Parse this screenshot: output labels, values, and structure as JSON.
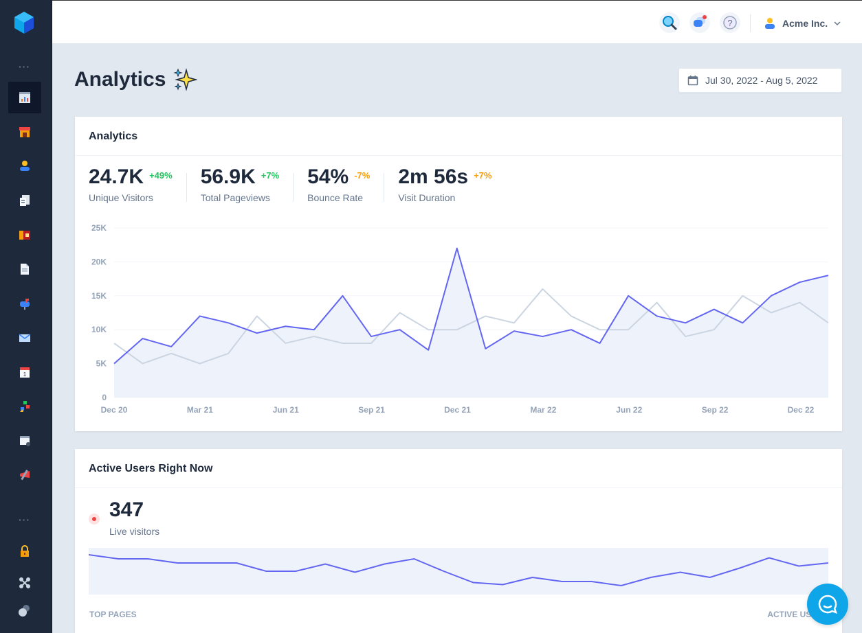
{
  "header": {
    "user_name": "Acme Inc."
  },
  "page": {
    "title": "Analytics",
    "date_range": "Jul 30, 2022 - Aug 5, 2022"
  },
  "analytics_card": {
    "title": "Analytics",
    "stats": [
      {
        "value": "24.7K",
        "delta": "+49%",
        "label": "Unique Visitors",
        "trend": "up"
      },
      {
        "value": "56.9K",
        "delta": "+7%",
        "label": "Total Pageviews",
        "trend": "up"
      },
      {
        "value": "54%",
        "delta": "-7%",
        "label": "Bounce Rate",
        "trend": "down"
      },
      {
        "value": "2m 56s",
        "delta": "+7%",
        "label": "Visit Duration",
        "trend": "neutral"
      }
    ]
  },
  "chart_data": {
    "type": "line",
    "title": "",
    "xlabel": "",
    "ylabel": "",
    "ylim": [
      0,
      25000
    ],
    "yticks": [
      "0",
      "5K",
      "10K",
      "15K",
      "20K",
      "25K"
    ],
    "xticks": [
      "Dec 20",
      "Mar 21",
      "Jun 21",
      "Sep 21",
      "Dec 21",
      "Mar 22",
      "Jun 22",
      "Sep 22",
      "Dec 22"
    ],
    "grid": true,
    "series": [
      {
        "color": "#6366f1",
        "filled": true,
        "values": [
          5000,
          8700,
          7500,
          12000,
          11000,
          9500,
          10500,
          10000,
          15000,
          9000,
          10000,
          7000,
          22000,
          7200,
          9800,
          9000,
          10000,
          8000,
          15000,
          12000,
          11000,
          13000,
          11000,
          15000,
          17000,
          18000
        ]
      },
      {
        "color": "#cbd5e1",
        "filled": false,
        "values": [
          8000,
          5000,
          6500,
          5000,
          6500,
          12000,
          8000,
          9000,
          8000,
          8000,
          12500,
          10000,
          10000,
          12000,
          11000,
          16000,
          12000,
          10000,
          10000,
          14000,
          9000,
          10000,
          15000,
          12500,
          14000,
          11000
        ]
      }
    ]
  },
  "active_card": {
    "title": "Active Users Right Now",
    "live_value": "347",
    "live_label": "Live visitors",
    "sparkline": [
      36,
      32,
      32,
      28,
      28,
      28,
      20,
      20,
      27,
      19,
      27,
      32,
      20,
      9,
      7,
      14,
      10,
      10,
      6,
      14,
      19,
      14,
      23,
      33,
      25,
      28
    ],
    "col_left": "Top pages",
    "col_right": "Active users"
  },
  "icons": {
    "accent": "#6366f1",
    "chat_color": "#0ea5e9"
  }
}
